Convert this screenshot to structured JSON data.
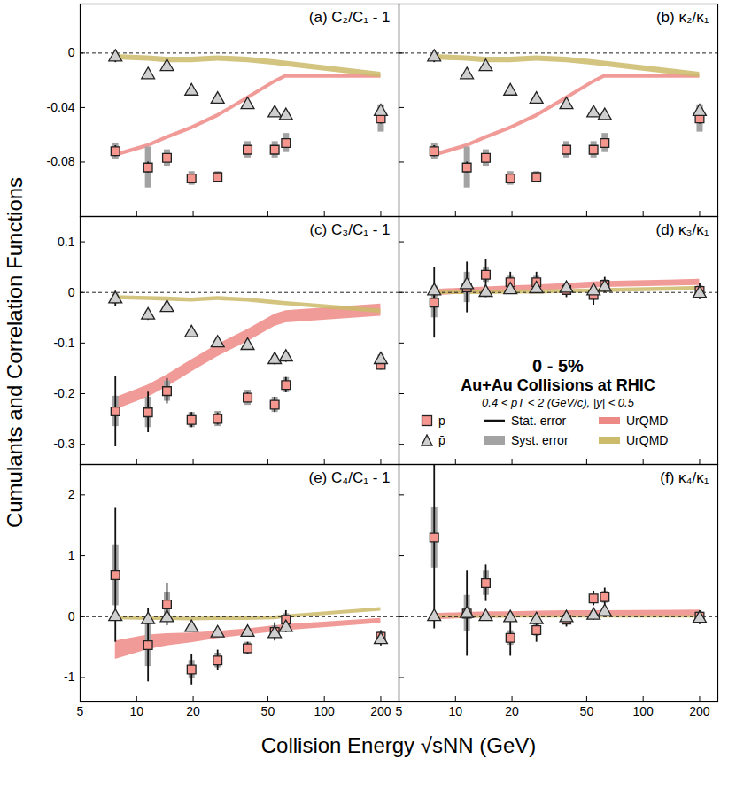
{
  "figure": {
    "ylabel": "Cumulants and Correlation Functions",
    "xlabel": "Collision Energy √sNN (GeV)"
  },
  "chart_data": [
    {
      "type": "scatter",
      "title": "(a) C₂/C₁ - 1",
      "log": "x",
      "tick_labels": "y",
      "baseline": 0,
      "x": [
        7.7,
        11.5,
        14.5,
        19.6,
        27,
        39,
        54.4,
        62.4,
        200
      ],
      "xlim": [
        5,
        250
      ],
      "xticks": [
        5,
        10,
        20,
        50,
        100,
        200
      ],
      "ylim": [
        -0.12,
        0.036
      ],
      "yticks": [
        0,
        -0.04,
        -0.08
      ],
      "series": [
        {
          "name": "UrQMD",
          "type": "area",
          "color": "#ee8a86",
          "lower": [
            -0.0765,
            -0.0695,
            -0.0635,
            -0.0565,
            -0.0475,
            -0.0345,
            -0.0225,
            -0.0185,
            -0.0185
          ],
          "upper": [
            -0.0735,
            -0.0665,
            -0.0605,
            -0.0535,
            -0.0445,
            -0.0315,
            -0.0195,
            -0.0155,
            -0.0155
          ]
        },
        {
          "name": "UrQMD",
          "type": "area",
          "color": "#cbbb6a",
          "lower": [
            -0.005,
            -0.006,
            -0.007,
            -0.007,
            -0.006,
            -0.007,
            -0.009,
            -0.01,
            -0.018
          ],
          "upper": [
            -0.001,
            -0.002,
            -0.003,
            -0.003,
            -0.002,
            -0.003,
            -0.005,
            -0.006,
            -0.014
          ]
        },
        {
          "name": "p",
          "type": "scatter",
          "color": "#f5978f",
          "marker": "square",
          "values": [
            -0.072,
            -0.084,
            -0.077,
            -0.092,
            -0.091,
            -0.071,
            -0.071,
            -0.066,
            -0.048
          ],
          "stat_errors": [
            0.004,
            0.004,
            0.003,
            0.003,
            0.003,
            0.002,
            0.003,
            0.003,
            0.004
          ],
          "syst_errors": [
            0.006,
            0.015,
            0.006,
            0.005,
            0.004,
            0.006,
            0.006,
            0.007,
            0.01
          ]
        },
        {
          "name": "p̄",
          "type": "scatter",
          "color": "#cfcfcf",
          "marker": "triangle",
          "values": [
            -0.003,
            -0.016,
            -0.01,
            -0.028,
            -0.034,
            -0.038,
            -0.044,
            -0.046,
            -0.043
          ],
          "stat_errors": [
            0.004,
            0.003,
            0.002,
            0.002,
            0.002,
            0.002,
            0.002,
            0.003,
            0.003
          ],
          "syst_errors": [
            0.003,
            0.002,
            0.002,
            0.002,
            0.002,
            0.002,
            0.003,
            0.003,
            0.005
          ]
        }
      ]
    },
    {
      "type": "scatter",
      "title": "(b) κ₂/κ₁",
      "log": "x",
      "tick_labels": false,
      "baseline": 0,
      "x": [
        7.7,
        11.5,
        14.5,
        19.6,
        27,
        39,
        54.4,
        62.4,
        200
      ],
      "xlim": [
        5,
        250
      ],
      "xticks": [
        5,
        10,
        20,
        50,
        100,
        200
      ],
      "ylim": [
        -0.12,
        0.036
      ],
      "yticks": [
        0,
        -0.04,
        -0.08
      ],
      "series": [
        {
          "name": "UrQMD",
          "type": "area",
          "color": "#ee8a86",
          "lower": [
            -0.0765,
            -0.0695,
            -0.0635,
            -0.0565,
            -0.0475,
            -0.0345,
            -0.0225,
            -0.0185,
            -0.0185
          ],
          "upper": [
            -0.0735,
            -0.0665,
            -0.0605,
            -0.0535,
            -0.0445,
            -0.0315,
            -0.0195,
            -0.0155,
            -0.0155
          ]
        },
        {
          "name": "UrQMD",
          "type": "area",
          "color": "#cbbb6a",
          "lower": [
            -0.005,
            -0.006,
            -0.007,
            -0.007,
            -0.006,
            -0.007,
            -0.009,
            -0.01,
            -0.018
          ],
          "upper": [
            -0.001,
            -0.002,
            -0.003,
            -0.003,
            -0.002,
            -0.003,
            -0.005,
            -0.006,
            -0.014
          ]
        },
        {
          "name": "p",
          "type": "scatter",
          "color": "#f5978f",
          "marker": "square",
          "values": [
            -0.072,
            -0.084,
            -0.077,
            -0.092,
            -0.091,
            -0.071,
            -0.071,
            -0.066,
            -0.048
          ],
          "stat_errors": [
            0.004,
            0.004,
            0.003,
            0.003,
            0.003,
            0.002,
            0.003,
            0.003,
            0.004
          ],
          "syst_errors": [
            0.006,
            0.015,
            0.006,
            0.005,
            0.004,
            0.006,
            0.006,
            0.007,
            0.01
          ]
        },
        {
          "name": "p̄",
          "type": "scatter",
          "color": "#cfcfcf",
          "marker": "triangle",
          "values": [
            -0.003,
            -0.016,
            -0.01,
            -0.028,
            -0.034,
            -0.038,
            -0.044,
            -0.046,
            -0.043
          ],
          "stat_errors": [
            0.004,
            0.003,
            0.002,
            0.002,
            0.002,
            0.002,
            0.002,
            0.003,
            0.003
          ],
          "syst_errors": [
            0.003,
            0.002,
            0.002,
            0.002,
            0.002,
            0.002,
            0.003,
            0.003,
            0.005
          ]
        }
      ]
    },
    {
      "type": "scatter",
      "title": "(c) C₃/C₁ - 1",
      "log": "x",
      "tick_labels": "y",
      "baseline": 0,
      "x": [
        7.7,
        11.5,
        14.5,
        19.6,
        27,
        39,
        54.4,
        62.4,
        200
      ],
      "xlim": [
        5,
        250
      ],
      "xticks": [
        5,
        10,
        20,
        50,
        100,
        200
      ],
      "ylim": [
        -0.34,
        0.15
      ],
      "yticks": [
        0.1,
        0,
        -0.1,
        -0.2,
        -0.3
      ],
      "series": [
        {
          "name": "UrQMD",
          "type": "area",
          "color": "#ee8a86",
          "lower": [
            -0.232,
            -0.207,
            -0.187,
            -0.157,
            -0.127,
            -0.097,
            -0.067,
            -0.06,
            -0.047
          ],
          "upper": [
            -0.208,
            -0.183,
            -0.163,
            -0.133,
            -0.103,
            -0.073,
            -0.043,
            -0.036,
            -0.023
          ]
        },
        {
          "name": "UrQMD",
          "type": "area",
          "color": "#cbbb6a",
          "lower": [
            -0.014,
            -0.016,
            -0.017,
            -0.019,
            -0.016,
            -0.019,
            -0.024,
            -0.026,
            -0.041
          ],
          "upper": [
            -0.006,
            -0.008,
            -0.009,
            -0.011,
            -0.008,
            -0.011,
            -0.016,
            -0.018,
            -0.033
          ]
        },
        {
          "name": "p",
          "type": "scatter",
          "color": "#f5978f",
          "marker": "square",
          "values": [
            -0.235,
            -0.237,
            -0.195,
            -0.252,
            -0.25,
            -0.208,
            -0.222,
            -0.183,
            -0.143
          ],
          "stat_errors": [
            0.07,
            0.04,
            0.025,
            0.015,
            0.012,
            0.01,
            0.015,
            0.015,
            0.01
          ],
          "syst_errors": [
            0.03,
            0.03,
            0.02,
            0.015,
            0.015,
            0.015,
            0.015,
            0.015,
            0.01
          ]
        },
        {
          "name": "p̄",
          "type": "scatter",
          "color": "#cfcfcf",
          "marker": "triangle",
          "values": [
            -0.013,
            -0.045,
            -0.03,
            -0.08,
            -0.1,
            -0.105,
            -0.133,
            -0.128,
            -0.133
          ],
          "stat_errors": [
            0.015,
            0.01,
            0.008,
            0.006,
            0.006,
            0.006,
            0.01,
            0.01,
            0.01
          ],
          "syst_errors": [
            0.01,
            0.008,
            0.006,
            0.006,
            0.006,
            0.006,
            0.008,
            0.008,
            0.01
          ]
        }
      ]
    },
    {
      "type": "scatter",
      "title": "(d) κ₃/κ₁",
      "log": "x",
      "tick_labels": false,
      "baseline": 0,
      "legend": "bottom",
      "annotations": [
        "0 - 5%",
        "Au+Au Collisions at RHIC",
        "0.4 < pT < 2 (GeV/c), |y| < 0.5"
      ],
      "error_legend": [
        "Stat. error",
        "Syst. error"
      ],
      "x": [
        7.7,
        11.5,
        14.5,
        19.6,
        27,
        39,
        54.4,
        62.4,
        200
      ],
      "xlim": [
        5,
        250
      ],
      "xticks": [
        5,
        10,
        20,
        50,
        100,
        200
      ],
      "ylim": [
        -0.34,
        0.15
      ],
      "yticks": [
        0.1,
        0,
        -0.1,
        -0.2,
        -0.3
      ],
      "series": [
        {
          "name": "UrQMD",
          "type": "area",
          "color": "#ee8a86",
          "lower": [
            -0.006,
            -0.003,
            -0.001,
            0.001,
            0.003,
            0.006,
            0.009,
            0.01,
            0.014
          ],
          "upper": [
            0.006,
            0.009,
            0.011,
            0.013,
            0.015,
            0.018,
            0.021,
            0.022,
            0.026
          ]
        },
        {
          "name": "UrQMD",
          "type": "area",
          "color": "#cbbb6a",
          "lower": [
            -0.004,
            -0.004,
            -0.004,
            -0.003,
            -0.003,
            -0.002,
            -0.001,
            0,
            0.004
          ],
          "upper": [
            0.004,
            0.004,
            0.004,
            0.005,
            0.005,
            0.006,
            0.007,
            0.008,
            0.012
          ]
        },
        {
          "name": "p",
          "type": "scatter",
          "color": "#f5978f",
          "marker": "square",
          "values": [
            -0.02,
            0.01,
            0.035,
            0.02,
            0.02,
            0.005,
            -0.005,
            0.015,
            0.003
          ],
          "stat_errors": [
            0.07,
            0.05,
            0.03,
            0.02,
            0.02,
            0.015,
            0.02,
            0.015,
            0.015
          ],
          "syst_errors": [
            0.03,
            0.03,
            0.015,
            0.012,
            0.012,
            0.01,
            0.01,
            0.01,
            0.01
          ]
        },
        {
          "name": "p̄",
          "type": "scatter",
          "color": "#cfcfcf",
          "marker": "triangle",
          "values": [
            0.003,
            0.015,
            0,
            0.005,
            0.007,
            0.008,
            0.003,
            0.01,
            -0.002
          ],
          "stat_errors": [
            0.015,
            0.012,
            0.01,
            0.008,
            0.008,
            0.008,
            0.01,
            0.01,
            0.012
          ],
          "syst_errors": [
            0.01,
            0.008,
            0.006,
            0.005,
            0.005,
            0.005,
            0.006,
            0.006,
            0.008
          ]
        }
      ]
    },
    {
      "type": "scatter",
      "title": "(e) C₄/C₁ - 1",
      "log": "x",
      "tick_labels": true,
      "baseline": 0,
      "x": [
        7.7,
        11.5,
        14.5,
        19.6,
        27,
        39,
        54.4,
        62.4,
        200
      ],
      "xlim": [
        5,
        250
      ],
      "xticks": [
        5,
        10,
        20,
        50,
        100,
        200
      ],
      "ylim": [
        -1.4,
        2.5
      ],
      "yticks": [
        2,
        1,
        0,
        -1
      ],
      "series": [
        {
          "name": "UrQMD",
          "type": "area",
          "color": "#ee8a86",
          "lower": [
            -0.7,
            -0.54,
            -0.48,
            -0.43,
            -0.36,
            -0.3,
            -0.25,
            -0.23,
            -0.11
          ],
          "upper": [
            -0.4,
            -0.3,
            -0.28,
            -0.27,
            -0.24,
            -0.2,
            -0.15,
            -0.13,
            -0.03
          ]
        },
        {
          "name": "UrQMD",
          "type": "area",
          "color": "#cbbb6a",
          "lower": [
            -0.05,
            -0.06,
            -0.06,
            -0.07,
            -0.06,
            -0.06,
            -0.05,
            -0.03,
            0.09
          ],
          "upper": [
            0.01,
            0,
            0,
            -0.01,
            0,
            0,
            0.01,
            0.03,
            0.15
          ]
        },
        {
          "name": "p",
          "type": "scatter",
          "color": "#f5978f",
          "marker": "square",
          "values": [
            0.68,
            -0.47,
            0.2,
            -0.87,
            -0.72,
            -0.52,
            -0.25,
            -0.05,
            -0.33
          ],
          "stat_errors": [
            1.1,
            0.6,
            0.35,
            0.25,
            0.17,
            0.1,
            0.15,
            0.15,
            0.1
          ],
          "syst_errors": [
            0.5,
            0.35,
            0.2,
            0.15,
            0.12,
            0.1,
            0.1,
            0.1,
            0.08
          ]
        },
        {
          "name": "p̄",
          "type": "scatter",
          "color": "#cfcfcf",
          "marker": "triangle",
          "values": [
            0,
            -0.05,
            -0.02,
            -0.18,
            -0.27,
            -0.26,
            -0.28,
            -0.18,
            -0.38
          ],
          "stat_errors": [
            0.06,
            0.05,
            0.05,
            0.05,
            0.05,
            0.06,
            0.08,
            0.08,
            0.1
          ],
          "syst_errors": [
            0.04,
            0.04,
            0.04,
            0.04,
            0.04,
            0.04,
            0.05,
            0.05,
            0.06
          ]
        }
      ]
    },
    {
      "type": "scatter",
      "title": "(f) κ₄/κ₁",
      "log": "x",
      "tick_labels": "x",
      "baseline": 0,
      "x": [
        7.7,
        11.5,
        14.5,
        19.6,
        27,
        39,
        54.4,
        62.4,
        200
      ],
      "xlim": [
        5,
        250
      ],
      "xticks": [
        5,
        10,
        20,
        50,
        100,
        200
      ],
      "ylim": [
        -1.4,
        2.5
      ],
      "yticks": [
        2,
        1,
        0,
        -1
      ],
      "series": [
        {
          "name": "UrQMD",
          "type": "area",
          "color": "#ee8a86",
          "lower": [
            -0.05,
            -0.03,
            -0.02,
            -0.02,
            -0.01,
            0,
            0,
            0,
            0.01
          ],
          "upper": [
            0.05,
            0.07,
            0.08,
            0.08,
            0.09,
            0.1,
            0.1,
            0.1,
            0.11
          ]
        },
        {
          "name": "UrQMD",
          "type": "area",
          "color": "#cbbb6a",
          "lower": [
            -0.02,
            -0.02,
            -0.02,
            -0.02,
            -0.02,
            -0.02,
            -0.02,
            -0.02,
            -0.02
          ],
          "upper": [
            0.02,
            0.02,
            0.02,
            0.02,
            0.02,
            0.02,
            0.02,
            0.02,
            0.02
          ]
        },
        {
          "name": "p",
          "type": "scatter",
          "color": "#f5978f",
          "marker": "square",
          "values": [
            1.3,
            0.05,
            0.55,
            -0.35,
            -0.22,
            -0.05,
            0.3,
            0.32,
            0
          ],
          "stat_errors": [
            1.5,
            0.7,
            0.3,
            0.3,
            0.2,
            0.12,
            0.12,
            0.15,
            0.1
          ],
          "syst_errors": [
            0.5,
            0.3,
            0.2,
            0.12,
            0.1,
            0.06,
            0.06,
            0.1,
            0.08
          ]
        },
        {
          "name": "p̄",
          "type": "scatter",
          "color": "#cfcfcf",
          "marker": "triangle",
          "values": [
            0,
            0.05,
            0,
            -0.02,
            -0.05,
            -0.02,
            0.02,
            0.08,
            -0.03
          ],
          "stat_errors": [
            0.06,
            0.05,
            0.05,
            0.05,
            0.05,
            0.06,
            0.08,
            0.08,
            0.1
          ],
          "syst_errors": [
            0.04,
            0.04,
            0.04,
            0.04,
            0.04,
            0.04,
            0.05,
            0.05,
            0.06
          ]
        }
      ]
    }
  ]
}
